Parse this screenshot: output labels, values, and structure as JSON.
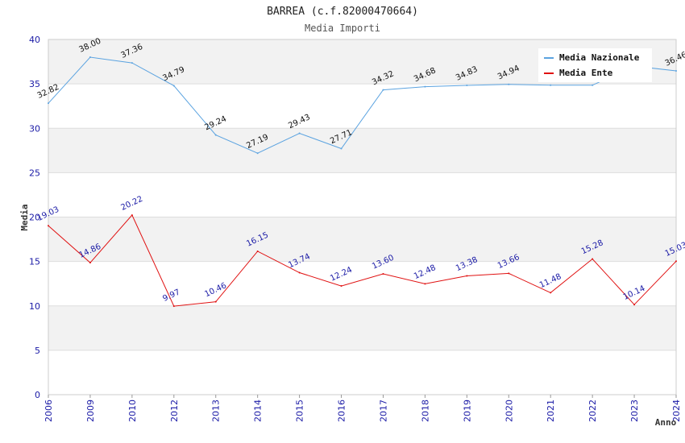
{
  "chart_data": {
    "type": "line",
    "title": "BARREA (c.f.82000470664)",
    "subtitle": "Media Importi",
    "xlabel": "Anno",
    "ylabel": "Media",
    "ylim": [
      0,
      40
    ],
    "yticks": [
      "0",
      "5",
      "10",
      "15",
      "20",
      "25",
      "30",
      "35",
      "40"
    ],
    "categories": [
      "2006",
      "2009",
      "2010",
      "2012",
      "2013",
      "2014",
      "2015",
      "2016",
      "2017",
      "2018",
      "2019",
      "2020",
      "2021",
      "2022",
      "2023",
      "2024"
    ],
    "series": [
      {
        "name": "Media Nazionale",
        "color": "#5ba3e0",
        "values": [
          32.82,
          38.0,
          37.36,
          34.79,
          29.24,
          27.19,
          29.43,
          27.71,
          34.32,
          34.68,
          34.83,
          34.94,
          34.85,
          34.85,
          37.0,
          36.46
        ],
        "labels": [
          "32.82",
          "38.00",
          "37.36",
          "34.79",
          "29.24",
          "27.19",
          "29.43",
          "27.71",
          "34.32",
          "34.68",
          "34.83",
          "34.94",
          "",
          "",
          "",
          "36.46"
        ]
      },
      {
        "name": "Media Ente",
        "color": "#e01010",
        "values": [
          19.03,
          14.86,
          20.22,
          9.97,
          10.46,
          16.15,
          13.74,
          12.24,
          13.6,
          12.48,
          13.38,
          13.66,
          11.48,
          15.28,
          10.14,
          15.03
        ],
        "labels": [
          "19.03",
          "14.86",
          "20.22",
          "9.97",
          "10.46",
          "16.15",
          "13.74",
          "12.24",
          "13.60",
          "12.48",
          "13.38",
          "13.66",
          "11.48",
          "15.28",
          "10.14",
          "15.03"
        ]
      }
    ],
    "legend": "top-right",
    "grid": true
  }
}
